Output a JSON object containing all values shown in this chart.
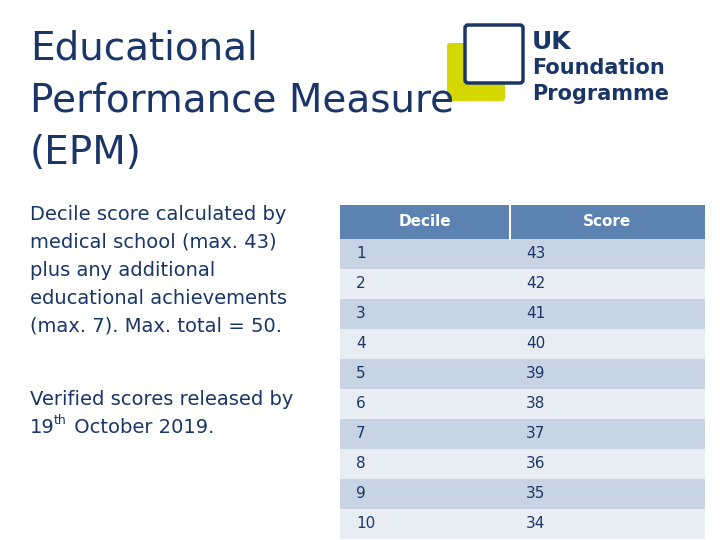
{
  "title_line1": "Educational",
  "title_line2": "Performance Measure",
  "title_line3": "(EPM)",
  "title_color": "#1a3668",
  "body_text1": "Decile score calculated by\nmedical school (max. 43)\nplus any additional\neducational achievements\n(max. 7). Max. total = 50.",
  "body_color": "#1a3668",
  "table_header": [
    "Decile",
    "Score"
  ],
  "table_data": [
    [
      1,
      43
    ],
    [
      2,
      42
    ],
    [
      3,
      41
    ],
    [
      4,
      40
    ],
    [
      5,
      39
    ],
    [
      6,
      38
    ],
    [
      7,
      37
    ],
    [
      8,
      36
    ],
    [
      9,
      35
    ],
    [
      10,
      34
    ]
  ],
  "header_bg": "#5b82b0",
  "header_text_color": "#ffffff",
  "row_odd_bg": "#c8d3e3",
  "row_even_bg": "#e8ecf3",
  "table_text_color": "#1a3668",
  "background_color": "#ffffff",
  "logo_text_color": "#1a3668",
  "logo_yellow": "#d4d800"
}
